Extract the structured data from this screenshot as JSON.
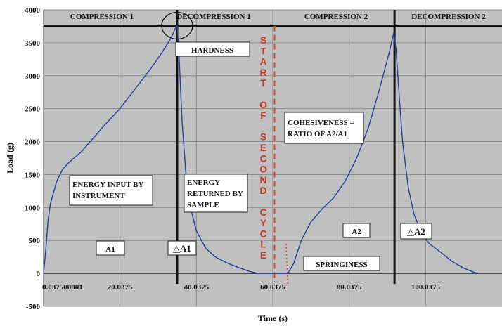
{
  "chart_data": {
    "type": "line",
    "title": "",
    "xlabel": "Time (s)",
    "ylabel": "Load (g)",
    "xlim": [
      0.0375,
      120.0375
    ],
    "ylim": [
      -500,
      4000
    ],
    "y_ticks": [
      -500,
      0,
      500,
      1000,
      1500,
      2000,
      2500,
      3000,
      3500,
      4000
    ],
    "y_tick_labels": [
      "-500",
      "0",
      "500",
      "1000",
      "1500",
      "2000",
      "2500",
      "3000",
      "3500",
      "4000"
    ],
    "x_ticks": [
      0.0375,
      20.0375,
      40.0375,
      60.0375,
      80.0375,
      100.0375
    ],
    "x_tick_labels": [
      "0.037500001",
      "20.0375",
      "40.0375",
      "60.0375",
      "80.0375",
      "100.0375"
    ],
    "grid": true,
    "background": "#c0c0c0",
    "line_color": "#2b3a9b",
    "series": [
      {
        "values_xy": [
          [
            0.0375,
            0
          ],
          [
            0.6,
            350
          ],
          [
            1.2,
            800
          ],
          [
            1.8,
            1050
          ],
          [
            2.5,
            1200
          ],
          [
            3.5,
            1400
          ],
          [
            5.0,
            1580
          ],
          [
            7.0,
            1700
          ],
          [
            10.0,
            1850
          ],
          [
            13.0,
            2050
          ],
          [
            16.0,
            2250
          ],
          [
            20.0,
            2500
          ],
          [
            24.0,
            2800
          ],
          [
            28.0,
            3100
          ],
          [
            31.0,
            3350
          ],
          [
            33.5,
            3580
          ],
          [
            34.5,
            3720
          ],
          [
            35.0,
            3760
          ],
          [
            35.5,
            3300
          ],
          [
            36.3,
            2300
          ],
          [
            37.3,
            1500
          ],
          [
            38.5,
            1000
          ],
          [
            40.0,
            650
          ],
          [
            42.5,
            380
          ],
          [
            45.0,
            250
          ],
          [
            48.0,
            160
          ],
          [
            51.0,
            90
          ],
          [
            54.0,
            30
          ],
          [
            56.0,
            0
          ],
          [
            64.0,
            0
          ],
          [
            65.5,
            150
          ],
          [
            67.5,
            500
          ],
          [
            70.0,
            780
          ],
          [
            73.0,
            980
          ],
          [
            76.0,
            1150
          ],
          [
            79.0,
            1400
          ],
          [
            82.0,
            1750
          ],
          [
            85.0,
            2200
          ],
          [
            88.0,
            2800
          ],
          [
            90.5,
            3350
          ],
          [
            91.7,
            3650
          ],
          [
            92.3,
            3400
          ],
          [
            93.0,
            2800
          ],
          [
            94.0,
            2000
          ],
          [
            95.5,
            1300
          ],
          [
            97.0,
            900
          ],
          [
            99.0,
            600
          ],
          [
            101.0,
            450
          ],
          [
            104.0,
            320
          ],
          [
            107.0,
            180
          ],
          [
            110.0,
            80
          ],
          [
            113.0,
            10
          ],
          [
            114.0,
            0
          ]
        ]
      }
    ],
    "dividers_x": [
      35.0,
      91.9
    ],
    "cycle_line_x": 60.5,
    "springiness_marker": {
      "x_from": 63.5,
      "x_to": 64.0,
      "y_from": 450,
      "y_to": -180
    },
    "phases": [
      "COMPRESSION 1",
      "DECOMPRESSION 1",
      "COMPRESSION 2",
      "DECOMPRESSION 2"
    ],
    "phase_band_y": 3760,
    "annotations": {
      "hardness": "HARDNESS",
      "start_cycle_letters": [
        "S",
        "T",
        "A",
        "R",
        "T",
        "",
        "O",
        "F",
        "",
        "S",
        "E",
        "C",
        "O",
        "N",
        "D",
        "",
        "C",
        "Y",
        "C",
        "L",
        "E"
      ],
      "cohesiveness": [
        "COHESIVENESS =",
        "RATIO OF A2/A1"
      ],
      "energy_input": [
        "ENERGY INPUT BY",
        "INSTRUMENT"
      ],
      "energy_returned": [
        "ENERGY",
        "RETURNED BY",
        "SAMPLE"
      ],
      "a1": "A1",
      "delta_a1": "△A1",
      "a2": "A2",
      "delta_a2": "△A2",
      "springiness": "SPRINGINESS"
    }
  }
}
